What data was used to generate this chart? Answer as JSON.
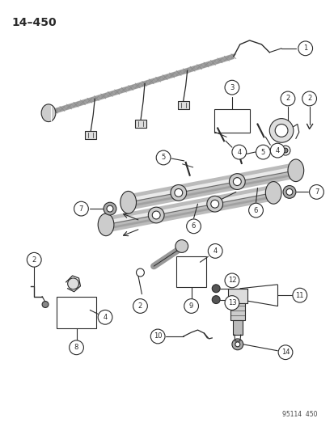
{
  "title": "14–450",
  "bg_color": "#ffffff",
  "line_color": "#2a2a2a",
  "fig_width": 4.14,
  "fig_height": 5.33,
  "dpi": 100,
  "watermark": "95114  450",
  "lw": 0.8
}
